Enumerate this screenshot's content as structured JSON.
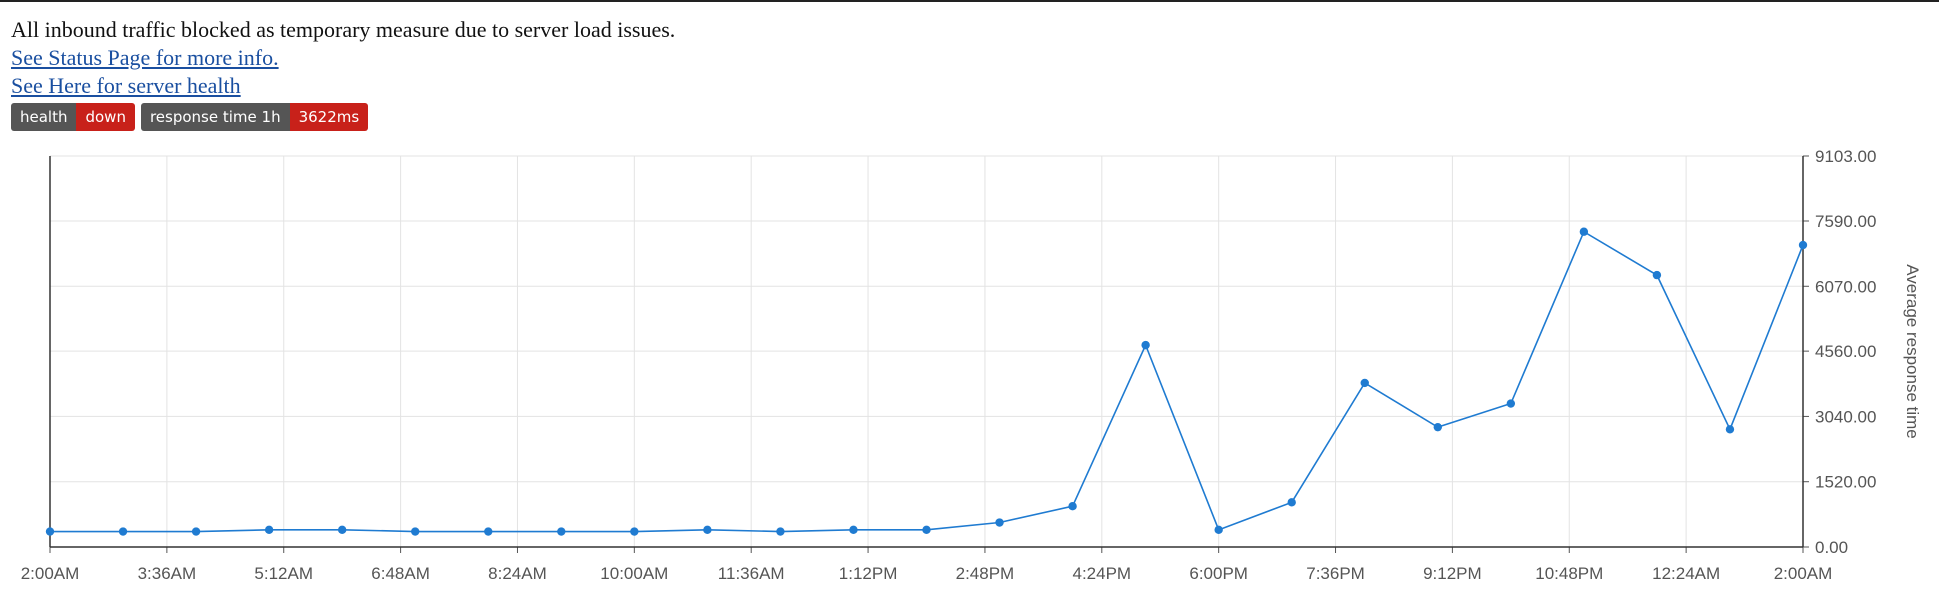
{
  "notice": "All inbound traffic blocked as temporary measure due to server load issues.",
  "links": {
    "status": "See Status Page for more info.",
    "health": "See Here for server health"
  },
  "badges": {
    "health": {
      "key": "health",
      "value": "down"
    },
    "response": {
      "key": "response time 1h",
      "value": "3622ms"
    }
  },
  "colors": {
    "line": "#1f7bd1",
    "badge_key": "#555555",
    "badge_value": "#c8211a",
    "link": "#1a4fa0"
  },
  "chart_data": {
    "type": "line",
    "ylabel": "Average response time",
    "ylim": [
      0,
      9103
    ],
    "yticks": [
      "0.00",
      "1520.00",
      "3040.00",
      "4560.00",
      "6070.00",
      "7590.00",
      "9103.00"
    ],
    "ytick_values": [
      0,
      1520,
      3040,
      4560,
      6070,
      7590,
      9103
    ],
    "xticks": [
      "2:00AM",
      "3:36AM",
      "5:12AM",
      "6:48AM",
      "8:24AM",
      "10:00AM",
      "11:36AM",
      "1:12PM",
      "2:48PM",
      "4:24PM",
      "6:00PM",
      "7:36PM",
      "9:12PM",
      "10:48PM",
      "12:24AM",
      "2:00AM"
    ],
    "x_hours": [
      0,
      1,
      2,
      3,
      4,
      5,
      6,
      7,
      8,
      9,
      10,
      11,
      12,
      13,
      14,
      15,
      16,
      17,
      18,
      19,
      20,
      21,
      22,
      23,
      24
    ],
    "values": [
      360,
      360,
      360,
      400,
      400,
      360,
      360,
      360,
      360,
      400,
      360,
      400,
      400,
      570,
      950,
      4700,
      400,
      1040,
      3820,
      2790,
      3340,
      7340,
      6330,
      2740,
      7030
    ],
    "grid": true,
    "y_axis_side": "right"
  }
}
